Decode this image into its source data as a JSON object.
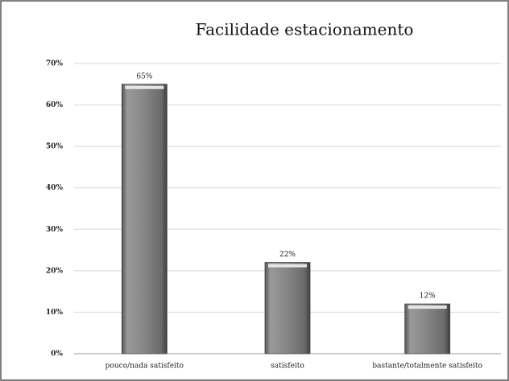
{
  "chart_data": {
    "type": "bar",
    "title": "Facilidade estacionamento",
    "categories": [
      "pouco/nada satisfeito",
      "satisfeito",
      "bastante/totalmente satisfeito"
    ],
    "values": [
      65,
      22,
      12
    ],
    "value_labels": [
      "65%",
      "22%",
      "12%"
    ],
    "color": "#808080",
    "ylim": [
      0,
      70
    ],
    "yticks": [
      {
        "value": 0,
        "label": "0%"
      },
      {
        "value": 10,
        "label": "10%"
      },
      {
        "value": 20,
        "label": "20%"
      },
      {
        "value": 30,
        "label": "30%"
      },
      {
        "value": 40,
        "label": "40%"
      },
      {
        "value": 50,
        "label": "50%"
      },
      {
        "value": 60,
        "label": "60%"
      },
      {
        "value": 70,
        "label": "70%"
      }
    ],
    "grid": true
  }
}
